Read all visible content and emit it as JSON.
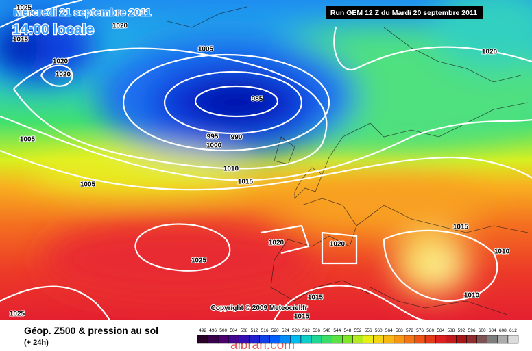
{
  "header": {
    "date": "Mercredi 21 septembre 2011",
    "time": "14:00 locale",
    "run": "Run GEM 12 Z du Mardi 20 septembre 2011"
  },
  "map": {
    "isobar_labels": [
      1025,
      1015,
      1020,
      1020,
      1020,
      1005,
      985,
      995,
      990,
      1000,
      1005,
      1005,
      1010,
      1015,
      1020,
      1015,
      1020,
      1020,
      1025,
      1010,
      1010,
      1015,
      1015,
      1025
    ],
    "copyright": "Copyright © 2009 Meteociel.fr"
  },
  "legend": {
    "title": "Géop. Z500 & pression au sol",
    "lead": "(+ 24h)",
    "scale": [
      492,
      496,
      500,
      504,
      508,
      512,
      516,
      520,
      524,
      528,
      532,
      536,
      540,
      544,
      548,
      552,
      556,
      560,
      564,
      568,
      572,
      576,
      580,
      584,
      588,
      592,
      596,
      600,
      604,
      608,
      612
    ]
  },
  "watermark": "albrari.com"
}
